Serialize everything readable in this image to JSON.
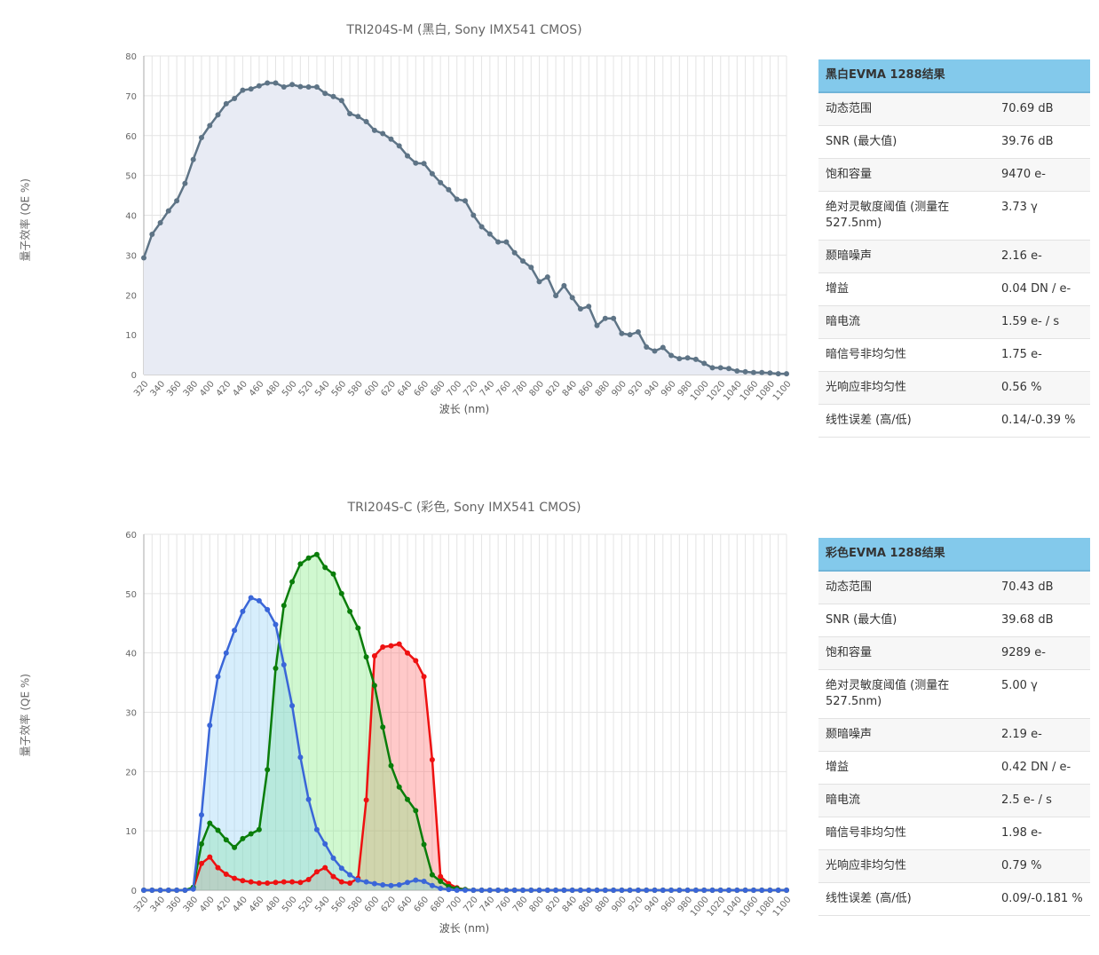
{
  "charts": [
    {
      "title": "TRI204S-M (黑白, Sony IMX541 CMOS)",
      "ylabel": "量子效率 (QE %)",
      "xlabel": "波长 (nm)",
      "results_title": "黑白EVMA 1288结果",
      "results": [
        {
          "key": "动态范围",
          "value": "70.69 dB"
        },
        {
          "key": "SNR (最大值)",
          "value": "39.76 dB"
        },
        {
          "key": "饱和容量",
          "value": "9470 e-"
        },
        {
          "key": "绝对灵敏度阈值 (测量在527.5nm)",
          "value": "3.73 γ"
        },
        {
          "key": "颞暗噪声",
          "value": "2.16 e-"
        },
        {
          "key": "增益",
          "value": "0.04 DN / e-"
        },
        {
          "key": "暗电流",
          "value": "1.59 e- / s"
        },
        {
          "key": "暗信号非均匀性",
          "value": "1.75 e-"
        },
        {
          "key": "光响应非均匀性",
          "value": "0.56 %"
        },
        {
          "key": "线性误差 (高/低)",
          "value": "0.14/-0.39 %"
        }
      ]
    },
    {
      "title": "TRI204S-C (彩色, Sony IMX541 CMOS)",
      "ylabel": "量子效率 (QE %)",
      "xlabel": "波长 (nm)",
      "results_title": "彩色EVMA 1288结果",
      "results": [
        {
          "key": "动态范围",
          "value": "70.43 dB"
        },
        {
          "key": "SNR (最大值)",
          "value": "39.68 dB"
        },
        {
          "key": "饱和容量",
          "value": "9289 e-"
        },
        {
          "key": "绝对灵敏度阈值 (测量在527.5nm)",
          "value": "5.00 γ"
        },
        {
          "key": "颞暗噪声",
          "value": "2.19 e-"
        },
        {
          "key": "增益",
          "value": "0.42 DN / e-"
        },
        {
          "key": "暗电流",
          "value": "2.5 e- / s"
        },
        {
          "key": "暗信号非均匀性",
          "value": "1.98 e-"
        },
        {
          "key": "光响应非均匀性",
          "value": "0.79 %"
        },
        {
          "key": "线性误差 (高/低)",
          "value": "0.09/-0.181 %"
        }
      ]
    }
  ],
  "chart_data": [
    {
      "type": "area",
      "title": "TRI204S-M (黑白, Sony IMX541 CMOS)",
      "xlabel": "波长 (nm)",
      "ylabel": "量子效率 (QE %)",
      "xlim": [
        320,
        1100
      ],
      "ylim": [
        0,
        80
      ],
      "yticks": [
        0,
        10,
        20,
        30,
        40,
        50,
        60,
        70,
        80
      ],
      "xticks": [
        320,
        340,
        360,
        380,
        400,
        420,
        440,
        460,
        480,
        500,
        520,
        540,
        560,
        580,
        600,
        620,
        640,
        660,
        680,
        700,
        720,
        740,
        760,
        780,
        800,
        820,
        840,
        860,
        880,
        900,
        920,
        940,
        960,
        980,
        1000,
        1020,
        1040,
        1060,
        1080,
        1100
      ],
      "grid": true,
      "x": [
        320,
        330,
        340,
        350,
        360,
        370,
        380,
        390,
        400,
        410,
        420,
        430,
        440,
        450,
        460,
        470,
        480,
        490,
        500,
        510,
        520,
        530,
        540,
        550,
        560,
        570,
        580,
        590,
        600,
        610,
        620,
        630,
        640,
        650,
        660,
        670,
        680,
        690,
        700,
        710,
        720,
        730,
        740,
        750,
        760,
        770,
        780,
        790,
        800,
        810,
        820,
        830,
        840,
        850,
        860,
        870,
        880,
        890,
        900,
        910,
        920,
        930,
        940,
        950,
        960,
        970,
        980,
        990,
        1000,
        1010,
        1020,
        1030,
        1040,
        1050,
        1060,
        1070,
        1080,
        1090,
        1100
      ],
      "series": [
        {
          "color": "#5e7486",
          "fill": "#e8ebf4",
          "values": [
            29.3,
            35.2,
            38.1,
            41.1,
            43.6,
            48,
            54,
            59.5,
            62.5,
            65.2,
            68,
            69.3,
            71.4,
            71.7,
            72.5,
            73.2,
            73.2,
            72.2,
            72.8,
            72.3,
            72.2,
            72.2,
            70.6,
            69.8,
            68.8,
            65.5,
            64.8,
            63.5,
            61.3,
            60.5,
            59.1,
            57.4,
            54.9,
            53.1,
            53,
            50.4,
            48.2,
            46.4,
            44,
            43.6,
            40,
            37.1,
            35.3,
            33.3,
            33.3,
            30.6,
            28.5,
            26.9,
            23.3,
            24.5,
            19.8,
            22.3,
            19.3,
            16.5,
            17.1,
            12.3,
            14.1,
            14.1,
            10.3,
            10,
            10.7,
            6.9,
            5.9,
            6.8,
            4.8,
            4,
            4.2,
            3.8,
            2.8,
            1.7,
            1.7,
            1.5,
            0.9,
            0.7,
            0.5,
            0.5,
            0.4,
            0.2,
            0.2
          ]
        }
      ]
    },
    {
      "type": "area",
      "title": "TRI204S-C (彩色, Sony IMX541 CMOS)",
      "xlabel": "波长 (nm)",
      "ylabel": "量子效率 (QE %)",
      "xlim": [
        320,
        1100
      ],
      "ylim": [
        0,
        60
      ],
      "yticks": [
        0,
        10,
        20,
        30,
        40,
        50,
        60
      ],
      "xticks": [
        320,
        340,
        360,
        380,
        400,
        420,
        440,
        460,
        480,
        500,
        520,
        540,
        560,
        580,
        600,
        620,
        640,
        660,
        680,
        700,
        720,
        740,
        760,
        780,
        800,
        820,
        840,
        860,
        880,
        900,
        920,
        940,
        960,
        980,
        1000,
        1020,
        1040,
        1060,
        1080,
        1100
      ],
      "grid": true,
      "x": [
        320,
        330,
        340,
        350,
        360,
        370,
        380,
        390,
        400,
        410,
        420,
        430,
        440,
        450,
        460,
        470,
        480,
        490,
        500,
        510,
        520,
        530,
        540,
        550,
        560,
        570,
        580,
        590,
        600,
        610,
        620,
        630,
        640,
        650,
        660,
        670,
        680,
        690,
        700,
        710,
        720,
        730,
        740,
        750,
        760,
        770,
        780,
        790,
        800,
        810,
        820,
        830,
        840,
        850,
        860,
        870,
        880,
        890,
        900,
        910,
        920,
        930,
        940,
        950,
        960,
        970,
        980,
        990,
        1000,
        1010,
        1020,
        1030,
        1040,
        1050,
        1060,
        1070,
        1080,
        1090,
        1100
      ],
      "series": [
        {
          "color": "#ee1111",
          "fill": "rgba(255,99,99,0.35)",
          "values": [
            0,
            0,
            0,
            0,
            0,
            0,
            0.3,
            4.5,
            5.6,
            3.8,
            2.7,
            2,
            1.6,
            1.4,
            1.2,
            1.2,
            1.3,
            1.4,
            1.4,
            1.3,
            1.8,
            3.1,
            3.8,
            2.3,
            1.4,
            1.2,
            2,
            15.2,
            39.5,
            41,
            41.2,
            41.5,
            40,
            38.7,
            36,
            22,
            2.3,
            1.1,
            0.4,
            0.1,
            0,
            0,
            0,
            0,
            0,
            0,
            0,
            0,
            0,
            0,
            0,
            0,
            0,
            0,
            0,
            0,
            0,
            0,
            0,
            0,
            0,
            0,
            0,
            0,
            0,
            0,
            0,
            0,
            0,
            0,
            0,
            0,
            0,
            0,
            0,
            0,
            0,
            0,
            0
          ]
        },
        {
          "color": "#0a7d0a",
          "fill": "rgba(120,235,120,0.35)",
          "values": [
            0,
            0,
            0,
            0,
            0,
            0,
            0.5,
            7.8,
            11.3,
            10.1,
            8.5,
            7.2,
            8.7,
            9.5,
            10.2,
            20.3,
            37.4,
            48,
            52,
            55,
            56,
            56.6,
            54.4,
            53.3,
            50,
            47,
            44.2,
            39.3,
            34.5,
            27.5,
            21,
            17.4,
            15.3,
            13.4,
            7.7,
            2.6,
            1.5,
            0.6,
            0.3,
            0.1,
            0,
            0,
            0,
            0,
            0,
            0,
            0,
            0,
            0,
            0,
            0,
            0,
            0,
            0,
            0,
            0,
            0,
            0,
            0,
            0,
            0,
            0,
            0,
            0,
            0,
            0,
            0,
            0,
            0,
            0,
            0,
            0,
            0,
            0,
            0,
            0,
            0,
            0,
            0
          ]
        },
        {
          "color": "#3a66d8",
          "fill": "rgba(140,205,245,0.35)",
          "values": [
            0,
            0,
            0,
            0,
            0,
            0,
            0.2,
            12.7,
            27.8,
            36,
            40,
            43.8,
            47,
            49.3,
            48.8,
            47.3,
            44.8,
            38,
            31.1,
            22.4,
            15.3,
            10.2,
            7.8,
            5.4,
            3.7,
            2.6,
            1.7,
            1.4,
            1.1,
            0.9,
            0.8,
            0.9,
            1.3,
            1.7,
            1.5,
            0.8,
            0.3,
            0.1,
            0,
            0,
            0,
            0,
            0,
            0,
            0,
            0,
            0,
            0,
            0,
            0,
            0,
            0,
            0,
            0,
            0,
            0,
            0,
            0,
            0,
            0,
            0,
            0,
            0,
            0,
            0,
            0,
            0,
            0,
            0,
            0,
            0,
            0,
            0,
            0,
            0,
            0,
            0,
            0,
            0
          ]
        }
      ]
    }
  ]
}
